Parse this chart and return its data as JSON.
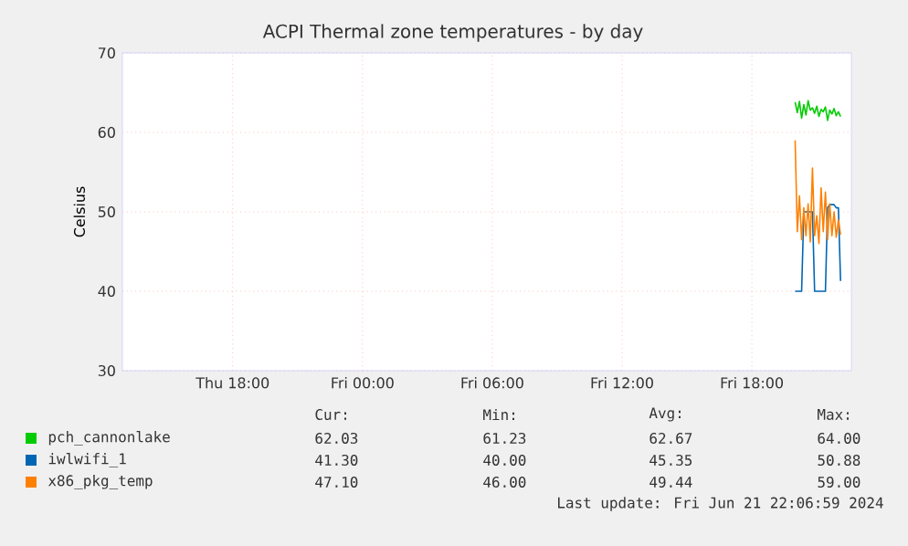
{
  "chart_data": {
    "type": "line",
    "title": "ACPI Thermal zone temperatures - by day",
    "ylabel": "Celsius",
    "x": [
      "2024-06-21T20:00",
      "2024-06-21T20:06",
      "2024-06-21T20:12",
      "2024-06-21T20:18",
      "2024-06-21T20:24",
      "2024-06-21T20:30",
      "2024-06-21T20:36",
      "2024-06-21T20:42",
      "2024-06-21T20:48",
      "2024-06-21T20:54",
      "2024-06-21T21:00",
      "2024-06-21T21:06",
      "2024-06-21T21:12",
      "2024-06-21T21:18",
      "2024-06-21T21:24",
      "2024-06-21T21:30",
      "2024-06-21T21:36",
      "2024-06-21T21:42",
      "2024-06-21T21:48",
      "2024-06-21T21:54",
      "2024-06-21T22:00",
      "2024-06-21T22:06"
    ],
    "series": [
      {
        "name": "pch_cannonlake",
        "color": "#00cc00",
        "values": [
          63.8,
          62.5,
          63.9,
          61.8,
          63.5,
          62.2,
          64.0,
          62.8,
          63.1,
          62.4,
          63.3,
          62.0,
          62.9,
          62.6,
          63.2,
          61.5,
          62.8,
          62.3,
          63.0,
          62.1,
          62.6,
          62.0
        ]
      },
      {
        "name": "iwlwifi_1",
        "color": "#0066b3",
        "values": [
          40.0,
          40.0,
          40.0,
          40.0,
          50.0,
          50.0,
          50.0,
          50.0,
          50.0,
          40.0,
          40.0,
          40.0,
          40.0,
          40.0,
          40.0,
          50.5,
          50.9,
          50.9,
          50.9,
          50.5,
          50.5,
          41.3
        ]
      },
      {
        "name": "x86_pkg_temp",
        "color": "#ff8000",
        "values": [
          59.0,
          47.5,
          52.0,
          46.5,
          50.5,
          47.0,
          51.0,
          46.2,
          55.5,
          47.0,
          49.5,
          46.0,
          53.0,
          47.5,
          52.5,
          46.5,
          51.0,
          47.0,
          50.0,
          46.8,
          49.0,
          47.1
        ]
      }
    ],
    "xlim": [
      "2024-06-20T12:54",
      "2024-06-21T22:36"
    ],
    "ylim": [
      30,
      70
    ],
    "xticks": [
      {
        "value": "2024-06-20T18:00",
        "label": "Thu 18:00"
      },
      {
        "value": "2024-06-21T00:00",
        "label": "Fri 00:00"
      },
      {
        "value": "2024-06-21T06:00",
        "label": "Fri 06:00"
      },
      {
        "value": "2024-06-21T12:00",
        "label": "Fri 12:00"
      },
      {
        "value": "2024-06-21T18:00",
        "label": "Fri 18:00"
      }
    ],
    "yticks": [
      30,
      40,
      50,
      60,
      70
    ],
    "grid": true,
    "legend": "bottom",
    "line_style": "solid",
    "marker": "none",
    "annotations": [
      "Cur:",
      "Min:",
      "Avg:",
      "Max:",
      "62.03",
      "61.23",
      "62.67",
      "64.00",
      "41.30",
      "40.00",
      "45.35",
      "50.88",
      "47.10",
      "46.00",
      "49.44",
      "59.00",
      "Last update: Fri Jun 21 22:06:59 2024"
    ]
  }
}
